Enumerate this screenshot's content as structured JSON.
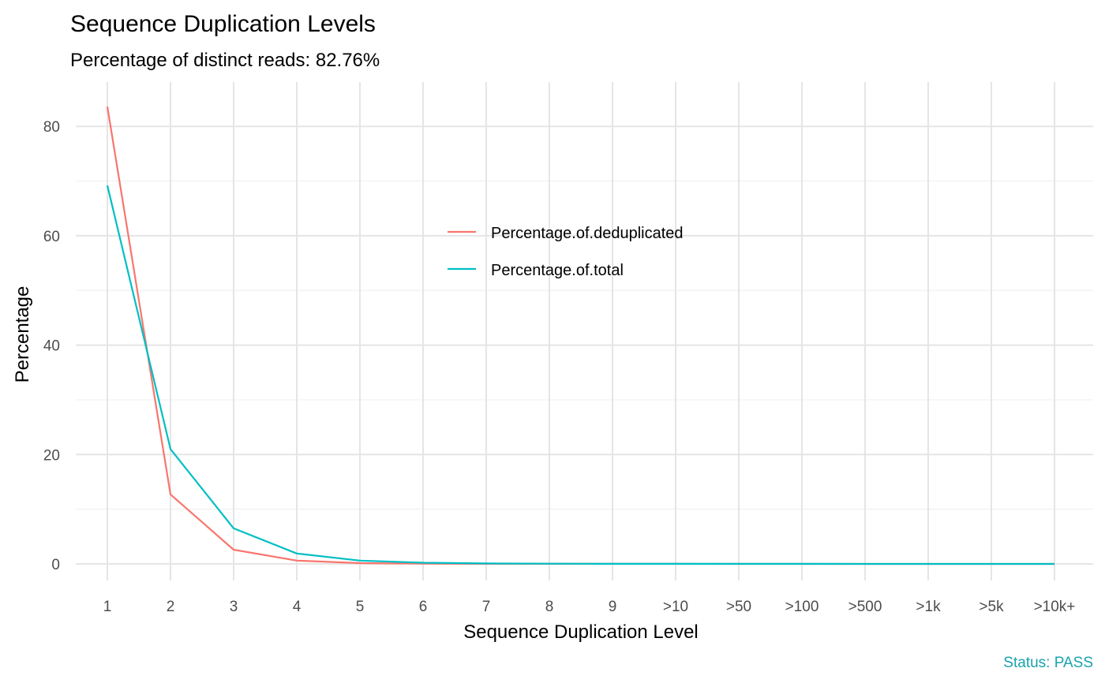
{
  "chart_data": {
    "type": "line",
    "title": "Sequence Duplication Levels",
    "subtitle": "Percentage of distinct reads: 82.76%",
    "xlabel": "Sequence Duplication Level",
    "ylabel": "Percentage",
    "categories": [
      "1",
      "2",
      "3",
      "4",
      "5",
      "6",
      "7",
      "8",
      "9",
      ">10",
      ">50",
      ">100",
      ">500",
      ">1k",
      ">5k",
      ">10k+"
    ],
    "ylim": [
      -3,
      88
    ],
    "yticks": [
      0,
      20,
      40,
      60,
      80
    ],
    "grid": true,
    "legend_position": "center",
    "series": [
      {
        "name": "Percentage.of.deduplicated",
        "color": "#F8766D",
        "values": [
          83.6,
          12.7,
          2.6,
          0.6,
          0.15,
          0.05,
          0.02,
          0.01,
          0.01,
          0.01,
          0.0,
          0.0,
          0.0,
          0.0,
          0.0,
          0.0
        ]
      },
      {
        "name": "Percentage.of.total",
        "color": "#00BFC4",
        "values": [
          69.2,
          21.0,
          6.5,
          1.9,
          0.6,
          0.22,
          0.08,
          0.04,
          0.02,
          0.02,
          0.01,
          0.01,
          0.0,
          0.0,
          0.0,
          0.0
        ]
      }
    ],
    "caption": "Status: PASS",
    "caption_color": "#1AA3AD"
  }
}
